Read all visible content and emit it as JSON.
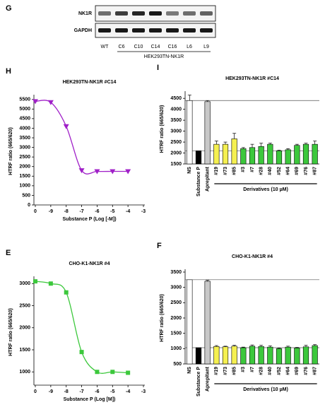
{
  "blot": {
    "label": "G",
    "rows": [
      "NK1R",
      "GAPDH"
    ],
    "lanes": [
      "WT",
      "C6",
      "C10",
      "C14",
      "C16",
      "L6",
      "L9"
    ],
    "lane_colors": [
      "#000000",
      "#000000",
      "#000000",
      "#1f3fbf",
      "#000000",
      "#000000",
      "#000000"
    ],
    "group_label": "HEK293TN-NK1R"
  },
  "chart_data": [
    {
      "type": "line",
      "label": "H",
      "title": "HEK293TN-NK1R #C14",
      "x_label": "Substance P (Log [-M])",
      "y_label": "HTRF ratio (665/620)",
      "categories": [
        "0",
        "-9",
        "-8",
        "-7",
        "-6",
        "-5",
        "-4",
        "-3"
      ],
      "values": [
        5400,
        5350,
        4100,
        1800,
        1750,
        1750,
        1750,
        null
      ],
      "color": "#a020c8",
      "marker": "triangle-down",
      "ylim": [
        0,
        5600
      ],
      "yticks": [
        0,
        500,
        1000,
        1500,
        2000,
        2500,
        3000,
        3500,
        4000,
        4500,
        5000,
        5500
      ]
    },
    {
      "type": "bar",
      "label": "I",
      "title": "HEK293TN-NK1R #C14",
      "y_label": "HTRF ratio (665/620)",
      "group_label": "Derivatives (10 µM)",
      "categories": [
        "NS",
        "Substance P",
        "Aprepitant",
        "#19",
        "#73",
        "#85",
        "#3",
        "#7",
        "#28",
        "#40",
        "#52",
        "#64",
        "#69",
        "#76",
        "#87"
      ],
      "values": [
        4400,
        2100,
        4350,
        2400,
        2400,
        2650,
        2200,
        2250,
        2300,
        2400,
        2100,
        2150,
        2350,
        2400,
        2400
      ],
      "errors": [
        250,
        0,
        50,
        150,
        100,
        250,
        50,
        150,
        150,
        50,
        30,
        50,
        50,
        50,
        150
      ],
      "colors": [
        "#ffffff",
        "#000000",
        "#c8c8c8",
        "#f5f050",
        "#f5f050",
        "#f5f050",
        "#3cc83c",
        "#3cc83c",
        "#3cc83c",
        "#3cc83c",
        "#3cc83c",
        "#3cc83c",
        "#3cc83c",
        "#3cc83c",
        "#3cc83c"
      ],
      "reference_lines": true,
      "ylim": [
        1500,
        4700
      ],
      "yticks": [
        1500,
        2000,
        2500,
        3000,
        3500,
        4000,
        4500
      ]
    },
    {
      "type": "line",
      "label": "E",
      "title": "CHO-K1-NK1R #4",
      "x_label": "Substance P (Log [M])",
      "y_label": "HTRF ratio (665/620)",
      "categories": [
        "0",
        "-9",
        "-8",
        "-7",
        "-6",
        "-5",
        "-4",
        "-3"
      ],
      "values": [
        3050,
        3000,
        2800,
        1450,
        1000,
        1000,
        980,
        null
      ],
      "color": "#3cc83c",
      "marker": "square",
      "ylim": [
        700,
        3100
      ],
      "yticks": [
        1000,
        1500,
        2000,
        2500,
        3000
      ]
    },
    {
      "type": "bar",
      "label": "F",
      "title": "CHO-K1-NK1R #4",
      "y_label": "HTRF ratio (665/620)",
      "group_label": "Derivatives (10 µM)",
      "categories": [
        "NS",
        "Substance P",
        "Aprepitant",
        "#19",
        "#73",
        "#85",
        "#3",
        "#7",
        "#28",
        "#40",
        "#52",
        "#64",
        "#69",
        "#76",
        "#87"
      ],
      "values": [
        3250,
        1030,
        3200,
        1070,
        1060,
        1080,
        1030,
        1080,
        1070,
        1050,
        1000,
        1050,
        1020,
        1060,
        1100
      ],
      "errors": [
        0,
        0,
        30,
        30,
        20,
        30,
        20,
        40,
        40,
        40,
        20,
        30,
        20,
        50,
        30
      ],
      "colors": [
        "#ffffff",
        "#000000",
        "#c8c8c8",
        "#f5f050",
        "#f5f050",
        "#f5f050",
        "#3cc83c",
        "#3cc83c",
        "#3cc83c",
        "#3cc83c",
        "#3cc83c",
        "#3cc83c",
        "#3cc83c",
        "#3cc83c",
        "#3cc83c"
      ],
      "reference_lines": true,
      "ylim": [
        500,
        3500
      ],
      "yticks": [
        500,
        1000,
        1500,
        2000,
        2500,
        3000,
        3500
      ]
    }
  ]
}
